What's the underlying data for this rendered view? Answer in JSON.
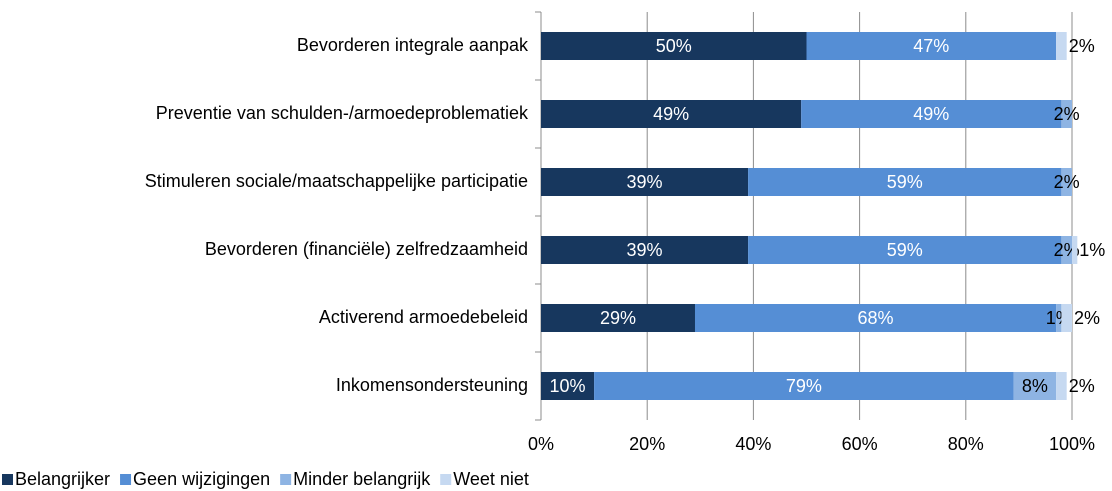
{
  "chart_data": {
    "type": "stacked_barh",
    "categories": [
      "Bevorderen integrale aanpak",
      "Preventie van schulden-/armoedeproblematiek",
      "Stimuleren sociale/maatschappelijke participatie",
      "Bevorderen (financiële) zelfredzaamheid",
      "Activerend armoedebeleid",
      "Inkomensondersteuning"
    ],
    "series": [
      {
        "name": "Belangrijker",
        "color": "#17375e",
        "label_color": "#ffffff",
        "values": [
          50,
          49,
          39,
          39,
          29,
          10
        ],
        "value_labels": [
          "50%",
          "49%",
          "39%",
          "39%",
          "29%",
          "10%"
        ]
      },
      {
        "name": "Geen wijzigingen",
        "color": "#558ed5",
        "label_color": "#ffffff",
        "values": [
          47,
          49,
          59,
          59,
          68,
          79
        ],
        "value_labels": [
          "47%",
          "49%",
          "59%",
          "59%",
          "68%",
          "79%"
        ]
      },
      {
        "name": "Minder belangrijk",
        "color": "#8eb4e3",
        "label_color": "#000000",
        "values": [
          0,
          2,
          2,
          2,
          1,
          8
        ],
        "value_labels": [
          null,
          "2%",
          "2%",
          "2%",
          "1%",
          "8%"
        ]
      },
      {
        "name": "Weet niet",
        "color": "#c6d9f1",
        "label_color": "#000000",
        "values": [
          2,
          0,
          0,
          1,
          2,
          2
        ],
        "value_labels": [
          "2%",
          null,
          null,
          "1%",
          "2%",
          "2%"
        ]
      }
    ],
    "xlim": [
      0,
      100
    ],
    "xticks": [
      {
        "value": 0,
        "label": "0%"
      },
      {
        "value": 20,
        "label": "20%"
      },
      {
        "value": 40,
        "label": "40%"
      },
      {
        "value": 60,
        "label": "60%"
      },
      {
        "value": 80,
        "label": "80%"
      },
      {
        "value": 100,
        "label": "100%"
      }
    ],
    "grid": true,
    "legend": "bottom"
  }
}
